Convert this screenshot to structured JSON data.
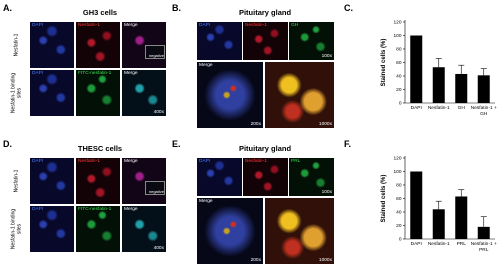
{
  "panels": [
    {
      "label": "A.",
      "title": "GH3 cells",
      "row_labels": [
        "Nesfatin-1",
        "Nesfatin-1 binding sites"
      ],
      "images": [
        "DAPI",
        "Nesfatin-1",
        "Merge",
        "negative",
        "DAPI",
        "FITC-nesfatin-1",
        "Merge",
        "400x"
      ]
    },
    {
      "label": "B.",
      "title": "Pituitary gland",
      "images": [
        "DAPI",
        "Nesfatin-1",
        "GH",
        "100x",
        "Merge",
        "200x",
        "1000x"
      ]
    },
    {
      "label": "C."
    },
    {
      "label": "D.",
      "title": "THESC cells",
      "row_labels": [
        "Nesfatin-1",
        "Nesfatin-1 binding sites"
      ],
      "images": [
        "DAPI",
        "Nesfatin-1",
        "Merge",
        "negative",
        "DAPI",
        "FITC-nesfatin-1",
        "Merge",
        "400x"
      ]
    },
    {
      "label": "E.",
      "title": "Pituitary gland",
      "images": [
        "DAPI",
        "Nesfatin-1",
        "PRL",
        "100x",
        "Merge",
        "200x",
        "1000x"
      ]
    },
    {
      "label": "F."
    }
  ],
  "chart_data": [
    {
      "type": "bar",
      "ylabel": "Stained cells (%)",
      "categories": [
        "DAPI",
        "Nesfatin-1",
        "GH",
        "Nesfatin-1 + GH"
      ],
      "values": [
        100,
        53,
        43,
        41
      ],
      "errors": [
        null,
        13,
        13,
        10
      ],
      "color": "#000000",
      "ylim": [
        0,
        120
      ],
      "yticks": [
        0,
        20,
        40,
        60,
        80,
        100,
        120
      ]
    },
    {
      "type": "bar",
      "ylabel": "Stained cells (%)",
      "categories": [
        "DAPI",
        "Nesfatin-1",
        "PRL",
        "Nesfatin-1 + PRL"
      ],
      "values": [
        100,
        44,
        63,
        18
      ],
      "errors": [
        null,
        12,
        10,
        15
      ],
      "color": "#000000",
      "ylim": [
        0,
        120
      ],
      "yticks": [
        0,
        20,
        40,
        60,
        80,
        100,
        120
      ]
    }
  ]
}
